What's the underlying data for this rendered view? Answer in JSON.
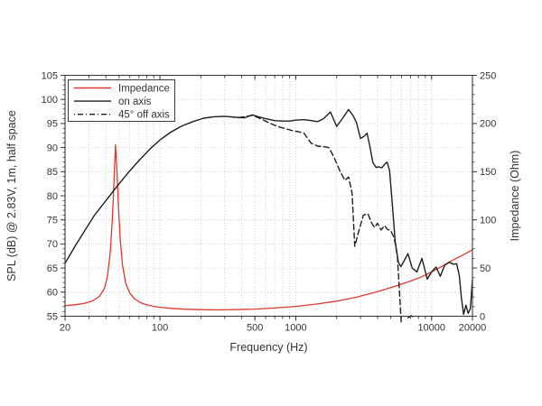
{
  "page": {
    "background": "#ffffff"
  },
  "chart_data": {
    "type": "line",
    "title": "",
    "xlabel": "Frequency (Hz)",
    "ylabel_left": "SPL (dB) @ 2.83V, 1m, half space",
    "ylabel_right": "Impedance (Ohm)",
    "x_scale": "log",
    "xlim": [
      20,
      20000
    ],
    "ylim_left": [
      55,
      105
    ],
    "ylim_right": [
      0,
      250
    ],
    "x_ticks_labeled": [
      20,
      100,
      500,
      1000,
      10000,
      20000
    ],
    "y_ticks_left": [
      55,
      60,
      65,
      70,
      75,
      80,
      85,
      90,
      95,
      100,
      105
    ],
    "y_ticks_right": [
      0,
      50,
      100,
      150,
      200,
      250
    ],
    "grid": true,
    "legend_position": "upper left",
    "colors": {
      "impedance": "#dc3a30",
      "spl": "#1f1f1f",
      "grid": "#c2c2c2",
      "frame": "#3a3a3a",
      "text": "#333333"
    },
    "series": [
      {
        "name": "Impedance",
        "axis": "right",
        "style": "solid",
        "color_key": "impedance",
        "x": [
          20,
          24,
          28,
          32,
          36,
          39,
          41,
          43,
          44.5,
          45.8,
          47,
          48.2,
          49.5,
          51,
          53,
          56,
          60,
          65,
          72,
          80,
          90,
          100,
          120,
          150,
          200,
          260,
          350,
          500,
          700,
          1000,
          1400,
          2000,
          2800,
          4000,
          5500,
          7000,
          8500,
          10000,
          12000,
          14000,
          17000,
          20000
        ],
        "y": [
          11,
          12,
          13.5,
          16,
          21,
          29,
          41,
          66,
          98,
          138,
          178,
          152,
          112,
          80,
          53,
          34,
          24,
          18,
          14,
          11.8,
          10.2,
          9.3,
          8.2,
          7.3,
          6.8,
          6.6,
          6.8,
          7.4,
          8.5,
          10.2,
          12.5,
          15.6,
          19.8,
          25.5,
          31.5,
          36.5,
          41,
          46,
          52,
          57.5,
          63.5,
          69
        ]
      },
      {
        "name": "on axis",
        "axis": "left",
        "style": "solid",
        "color_key": "spl",
        "x": [
          20,
          24,
          28,
          33,
          40,
          48,
          58,
          70,
          85,
          100,
          120,
          145,
          175,
          210,
          250,
          300,
          360,
          420,
          480,
          530,
          600,
          700,
          800,
          900,
          1000,
          1150,
          1300,
          1450,
          1600,
          1800,
          2000,
          2200,
          2450,
          2650,
          2800,
          3000,
          3200,
          3350,
          3500,
          3700,
          3900,
          4100,
          4300,
          4500,
          4700,
          4900,
          5100,
          5400,
          5700,
          5950,
          6300,
          6700,
          7200,
          7800,
          8500,
          9300,
          10000,
          10800,
          11600,
          12500,
          13500,
          14500,
          15300,
          16000,
          16600,
          17200,
          17900,
          18600,
          19300,
          20000
        ],
        "y": [
          66,
          69.8,
          72.8,
          76,
          79,
          81.9,
          84.7,
          87.3,
          89.8,
          91.6,
          93.2,
          94.5,
          95.4,
          96.1,
          96.4,
          96.5,
          96.3,
          96.2,
          96.8,
          96.4,
          96,
          95.6,
          95.5,
          95.5,
          95.7,
          95.8,
          95.6,
          95.4,
          96,
          97.4,
          94.4,
          96,
          97.9,
          96.6,
          95.2,
          91.9,
          92.4,
          93,
          90.5,
          86.9,
          85.9,
          86,
          85.8,
          86.5,
          87,
          85.3,
          79.5,
          70.5,
          66.2,
          65.3,
          66.6,
          68,
          65,
          64.2,
          67,
          62.7,
          64.2,
          65.2,
          63.3,
          65.6,
          66.2,
          65.8,
          65.9,
          63.5,
          58.8,
          55.4,
          57.3,
          55.6,
          56.6,
          62.5
        ]
      },
      {
        "name": "45° off axis",
        "axis": "left",
        "style": "dashed",
        "color_key": "spl",
        "x": [
          380,
          480,
          560,
          650,
          750,
          850,
          950,
          1050,
          1150,
          1300,
          1450,
          1600,
          1750,
          1900,
          2100,
          2300,
          2450,
          2600,
          2720,
          2900,
          3150,
          3400,
          3600,
          3800,
          4000,
          4250,
          4500,
          4750,
          5000,
          5300,
          5600,
          5850,
          5980,
          6200,
          6700,
          7100,
          7500
        ],
        "y": [
          96.2,
          96.7,
          95.9,
          95,
          94.3,
          93.9,
          93.5,
          93.3,
          93,
          90.9,
          90.3,
          90.2,
          90,
          88.2,
          85.3,
          83.2,
          83.9,
          80.5,
          69.5,
          72.5,
          76,
          76.3,
          74.5,
          73.4,
          74.3,
          72.9,
          73.8,
          73,
          72.8,
          71.3,
          67.5,
          58.5,
          53.5,
          null,
          54.7,
          55.1,
          54.6
        ]
      }
    ]
  }
}
